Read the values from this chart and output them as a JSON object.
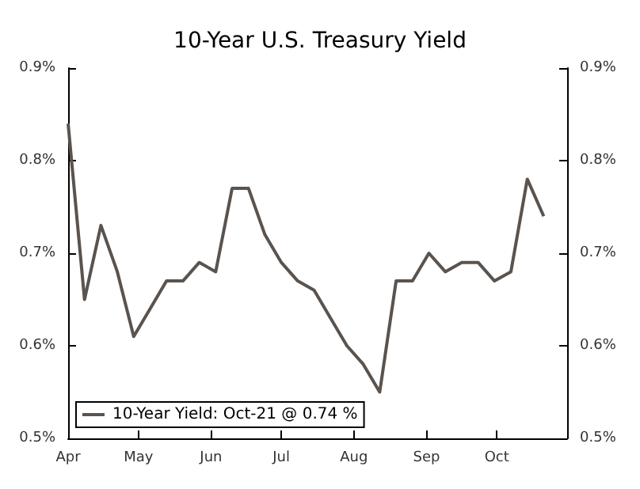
{
  "chart_data": {
    "type": "line",
    "title": "10-Year U.S. Treasury Yield",
    "x": [
      "--04-01",
      "--04-08",
      "--04-15",
      "--04-22",
      "--04-29",
      "--05-06",
      "--05-13",
      "--05-20",
      "--05-27",
      "--06-03",
      "--06-10",
      "--06-17",
      "--06-24",
      "--07-01",
      "--07-08",
      "--07-15",
      "--07-22",
      "--07-29",
      "--08-05",
      "--08-12",
      "--08-19",
      "--08-26",
      "--09-02",
      "--09-09",
      "--09-16",
      "--09-23",
      "--09-30",
      "--10-07",
      "--10-14",
      "--10-21"
    ],
    "series": [
      {
        "name": "10-Year Yield: Oct-21 @ 0.74 %",
        "color": "#5a534e",
        "values": [
          0.84,
          0.65,
          0.73,
          0.68,
          0.61,
          0.64,
          0.67,
          0.67,
          0.69,
          0.68,
          0.77,
          0.77,
          0.72,
          0.69,
          0.67,
          0.66,
          0.63,
          0.6,
          0.58,
          0.55,
          0.67,
          0.67,
          0.7,
          0.68,
          0.69,
          0.69,
          0.67,
          0.68,
          0.78,
          0.74
        ]
      }
    ],
    "xlim": [
      "--04-01",
      "--10-31"
    ],
    "xticks": [
      {
        "value": "--04-01",
        "label": "Apr"
      },
      {
        "value": "--05-01",
        "label": "May"
      },
      {
        "value": "--06-01",
        "label": "Jun"
      },
      {
        "value": "--07-01",
        "label": "Jul"
      },
      {
        "value": "--08-01",
        "label": "Aug"
      },
      {
        "value": "--09-01",
        "label": "Sep"
      },
      {
        "value": "--10-01",
        "label": "Oct"
      }
    ],
    "ylim": [
      0.5,
      0.9
    ],
    "yticks": [
      {
        "value": 0.5,
        "label": "0.5%"
      },
      {
        "value": 0.6,
        "label": "0.6%"
      },
      {
        "value": 0.7,
        "label": "0.7%"
      },
      {
        "value": 0.8,
        "label": "0.8%"
      },
      {
        "value": 0.9,
        "label": "0.9%"
      }
    ],
    "y2lim": [
      0.5,
      0.9
    ],
    "y2ticks": [
      {
        "value": 0.5,
        "label": "0.5%"
      },
      {
        "value": 0.6,
        "label": "0.6%"
      },
      {
        "value": 0.7,
        "label": "0.7%"
      },
      {
        "value": 0.8,
        "label": "0.8%"
      },
      {
        "value": 0.9,
        "label": "0.9%"
      }
    ],
    "grid": false,
    "legend": "bottom left",
    "marker": "none",
    "line_style": "solid"
  }
}
